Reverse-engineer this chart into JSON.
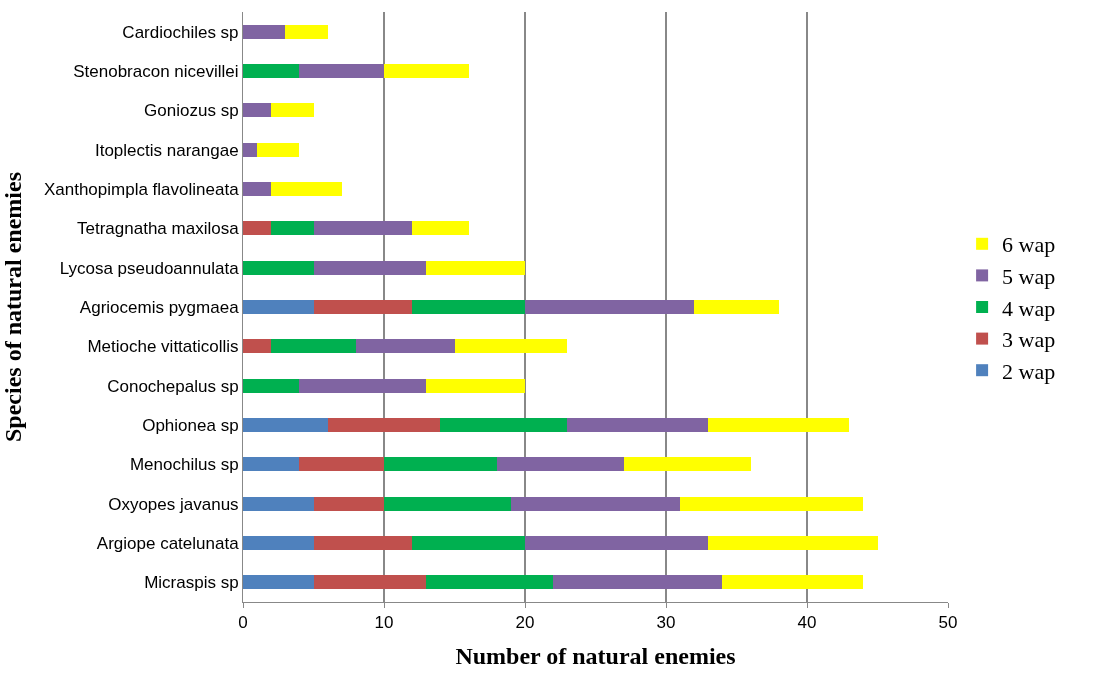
{
  "chart_data": {
    "type": "bar",
    "orientation": "horizontal",
    "stacked": true,
    "xlabel": "Number of natural enemies",
    "ylabel": "Species of natural enemies",
    "categories": [
      "Cardiochiles sp",
      "Stenobracon nicevillei",
      "Goniozus sp",
      "Itoplectis narangae",
      "Xanthopimpla flavolineata",
      "Tetragnatha maxilosa",
      "Lycosa pseudoannulata",
      "Agriocemis pygmaea",
      "Metioche vittaticollis",
      "Conochepalus sp",
      "Ophionea sp",
      "Menochilus sp",
      "Oxyopes javanus",
      "Argiope catelunata",
      "Micraspis sp"
    ],
    "series": [
      {
        "name": "2 wap",
        "color": "#4f81bd",
        "values": [
          0,
          0,
          0,
          0,
          0,
          0,
          0,
          5,
          0,
          0,
          6,
          4,
          5,
          5,
          5
        ]
      },
      {
        "name": "3 wap",
        "color": "#c0504d",
        "values": [
          0,
          0,
          0,
          0,
          0,
          2,
          0,
          7,
          2,
          0,
          8,
          6,
          5,
          7,
          8
        ]
      },
      {
        "name": "4 wap",
        "color": "#00b050",
        "values": [
          0,
          4,
          0,
          0,
          0,
          3,
          5,
          8,
          6,
          4,
          9,
          8,
          9,
          8,
          9
        ]
      },
      {
        "name": "5 wap",
        "color": "#8064a2",
        "values": [
          3,
          6,
          2,
          1,
          2,
          7,
          8,
          12,
          7,
          9,
          10,
          9,
          12,
          13,
          12
        ]
      },
      {
        "name": "6 wap",
        "color": "#ffff00",
        "values": [
          3,
          6,
          3,
          3,
          5,
          4,
          7,
          6,
          8,
          7,
          10,
          9,
          13,
          12,
          10
        ]
      }
    ],
    "xlim": [
      0,
      50
    ],
    "xticks": [
      0,
      10,
      20,
      30,
      40,
      50
    ],
    "grid": "x",
    "legend": "right"
  }
}
